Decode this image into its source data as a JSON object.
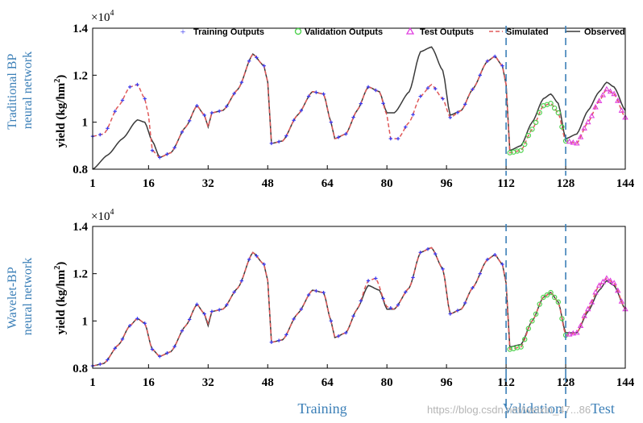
{
  "chart_data": [
    {
      "type": "line",
      "side_label": [
        "Traditional BP",
        "neural network"
      ],
      "ylabel": "yield (kg/hm²)",
      "ylabel_main": "yield (kg/hm",
      "ylabel_sup": "2",
      "ylabel_close": ")",
      "y_multiplier": "×10",
      "y_multiplier_exp": "4",
      "ylim": [
        0.8,
        1.4
      ],
      "yticks": [
        "0.8",
        "1",
        "1.2",
        "1.4"
      ],
      "xlim": [
        1,
        144
      ],
      "xticks": [
        "1",
        "16",
        "32",
        "48",
        "64",
        "80",
        "96",
        "112",
        "128",
        "144"
      ],
      "legend": {
        "position": "top",
        "entries": [
          "Training Outputs",
          "Validation Outputs",
          "Test Outputs",
          "Simulated",
          "Observed"
        ]
      },
      "series": [
        {
          "name": "Observed",
          "color": "#3a3a3a",
          "points": [
            [
              1,
              0.8
            ],
            [
              5,
              0.86
            ],
            [
              9,
              0.93
            ],
            [
              13,
              1.01
            ],
            [
              15,
              1.0
            ],
            [
              17,
              0.92
            ],
            [
              19,
              0.85
            ],
            [
              22,
              0.87
            ],
            [
              26,
              0.98
            ],
            [
              29,
              1.07
            ],
            [
              31,
              1.03
            ],
            [
              32,
              0.98
            ],
            [
              33,
              1.04
            ],
            [
              36,
              1.05
            ],
            [
              40,
              1.14
            ],
            [
              44,
              1.29
            ],
            [
              47,
              1.24
            ],
            [
              48,
              1.17
            ],
            [
              49,
              0.91
            ],
            [
              52,
              0.92
            ],
            [
              56,
              1.03
            ],
            [
              60,
              1.13
            ],
            [
              63,
              1.12
            ],
            [
              65,
              1.0
            ],
            [
              66,
              0.93
            ],
            [
              69,
              0.95
            ],
            [
              72,
              1.05
            ],
            [
              75,
              1.15
            ],
            [
              78,
              1.13
            ],
            [
              80,
              1.04
            ],
            [
              82,
              1.04
            ],
            [
              86,
              1.13
            ],
            [
              89,
              1.3
            ],
            [
              92,
              1.32
            ],
            [
              95,
              1.22
            ],
            [
              97,
              1.03
            ],
            [
              100,
              1.05
            ],
            [
              103,
              1.14
            ],
            [
              107,
              1.26
            ],
            [
              109,
              1.28
            ],
            [
              111,
              1.24
            ],
            [
              112,
              1.16
            ],
            [
              113,
              0.88
            ],
            [
              116,
              0.9
            ],
            [
              119,
              1.0
            ],
            [
              122,
              1.1
            ],
            [
              124,
              1.12
            ],
            [
              126,
              1.08
            ],
            [
              128,
              0.93
            ],
            [
              131,
              0.95
            ],
            [
              134,
              1.05
            ],
            [
              137,
              1.13
            ],
            [
              139,
              1.17
            ],
            [
              141,
              1.15
            ],
            [
              144,
              1.05
            ]
          ]
        },
        {
          "name": "Simulated",
          "color": "#e05a5a",
          "points": [
            [
              1,
              0.94
            ],
            [
              4,
              0.95
            ],
            [
              8,
              1.07
            ],
            [
              11,
              1.15
            ],
            [
              13,
              1.16
            ],
            [
              15,
              1.1
            ],
            [
              16,
              1.03
            ],
            [
              17,
              0.88
            ],
            [
              19,
              0.85
            ],
            [
              22,
              0.87
            ],
            [
              26,
              0.98
            ],
            [
              29,
              1.07
            ],
            [
              31,
              1.03
            ],
            [
              32,
              0.98
            ],
            [
              33,
              1.04
            ],
            [
              36,
              1.05
            ],
            [
              40,
              1.14
            ],
            [
              44,
              1.29
            ],
            [
              47,
              1.24
            ],
            [
              48,
              1.17
            ],
            [
              49,
              0.91
            ],
            [
              52,
              0.92
            ],
            [
              56,
              1.03
            ],
            [
              60,
              1.13
            ],
            [
              63,
              1.12
            ],
            [
              65,
              1.0
            ],
            [
              66,
              0.93
            ],
            [
              69,
              0.95
            ],
            [
              72,
              1.05
            ],
            [
              75,
              1.15
            ],
            [
              78,
              1.13
            ],
            [
              80,
              1.03
            ],
            [
              81,
              0.93
            ],
            [
              83,
              0.93
            ],
            [
              86,
              1.0
            ],
            [
              89,
              1.11
            ],
            [
              92,
              1.16
            ],
            [
              95,
              1.1
            ],
            [
              97,
              1.02
            ],
            [
              100,
              1.05
            ],
            [
              103,
              1.14
            ],
            [
              107,
              1.26
            ],
            [
              109,
              1.28
            ],
            [
              111,
              1.24
            ],
            [
              112,
              1.16
            ],
            [
              113,
              0.87
            ],
            [
              116,
              0.88
            ],
            [
              119,
              0.97
            ],
            [
              122,
              1.07
            ],
            [
              124,
              1.08
            ],
            [
              126,
              1.04
            ],
            [
              128,
              0.92
            ],
            [
              131,
              0.91
            ],
            [
              134,
              1.0
            ],
            [
              137,
              1.09
            ],
            [
              139,
              1.14
            ],
            [
              141,
              1.12
            ],
            [
              144,
              1.02
            ]
          ]
        }
      ]
    },
    {
      "type": "line",
      "side_label": [
        "Wavelet-BP",
        "neural network"
      ],
      "ylabel": "yield (kg/hm²)",
      "ylabel_main": "yield (kg/hm",
      "ylabel_sup": "2",
      "ylabel_close": ")",
      "y_multiplier": "×10",
      "y_multiplier_exp": "4",
      "ylim": [
        0.8,
        1.4
      ],
      "yticks": [
        "0.8",
        "1",
        "1.2",
        "1.4"
      ],
      "xlim": [
        1,
        144
      ],
      "xticks": [
        "1",
        "16",
        "32",
        "48",
        "64",
        "80",
        "96",
        "112",
        "128",
        "144"
      ],
      "series": [
        {
          "name": "Observed",
          "color": "#3a3a3a",
          "points": [
            [
              1,
              0.81
            ],
            [
              4,
              0.82
            ],
            [
              8,
              0.9
            ],
            [
              11,
              0.98
            ],
            [
              13,
              1.01
            ],
            [
              15,
              0.99
            ],
            [
              17,
              0.88
            ],
            [
              19,
              0.85
            ],
            [
              22,
              0.87
            ],
            [
              26,
              0.98
            ],
            [
              29,
              1.07
            ],
            [
              31,
              1.03
            ],
            [
              32,
              0.98
            ],
            [
              33,
              1.04
            ],
            [
              36,
              1.05
            ],
            [
              40,
              1.14
            ],
            [
              44,
              1.29
            ],
            [
              47,
              1.24
            ],
            [
              48,
              1.17
            ],
            [
              49,
              0.91
            ],
            [
              52,
              0.92
            ],
            [
              56,
              1.03
            ],
            [
              60,
              1.13
            ],
            [
              63,
              1.12
            ],
            [
              65,
              1.0
            ],
            [
              66,
              0.93
            ],
            [
              69,
              0.95
            ],
            [
              72,
              1.05
            ],
            [
              75,
              1.15
            ],
            [
              78,
              1.13
            ],
            [
              80,
              1.05
            ],
            [
              82,
              1.05
            ],
            [
              86,
              1.14
            ],
            [
              89,
              1.29
            ],
            [
              92,
              1.31
            ],
            [
              95,
              1.22
            ],
            [
              97,
              1.03
            ],
            [
              100,
              1.05
            ],
            [
              103,
              1.14
            ],
            [
              107,
              1.26
            ],
            [
              109,
              1.28
            ],
            [
              111,
              1.24
            ],
            [
              112,
              1.16
            ],
            [
              113,
              0.89
            ],
            [
              116,
              0.9
            ],
            [
              119,
              1.0
            ],
            [
              122,
              1.1
            ],
            [
              124,
              1.12
            ],
            [
              126,
              1.08
            ],
            [
              128,
              0.95
            ],
            [
              131,
              0.95
            ],
            [
              134,
              1.04
            ],
            [
              137,
              1.13
            ],
            [
              139,
              1.17
            ],
            [
              141,
              1.15
            ],
            [
              144,
              1.05
            ]
          ]
        },
        {
          "name": "Simulated",
          "color": "#e05a5a",
          "points": [
            [
              1,
              0.81
            ],
            [
              4,
              0.82
            ],
            [
              8,
              0.9
            ],
            [
              11,
              0.98
            ],
            [
              13,
              1.01
            ],
            [
              15,
              0.99
            ],
            [
              17,
              0.88
            ],
            [
              19,
              0.85
            ],
            [
              22,
              0.87
            ],
            [
              26,
              0.98
            ],
            [
              29,
              1.07
            ],
            [
              31,
              1.03
            ],
            [
              32,
              0.99
            ],
            [
              33,
              1.04
            ],
            [
              36,
              1.05
            ],
            [
              40,
              1.14
            ],
            [
              44,
              1.29
            ],
            [
              47,
              1.24
            ],
            [
              48,
              1.17
            ],
            [
              49,
              0.91
            ],
            [
              52,
              0.92
            ],
            [
              56,
              1.03
            ],
            [
              60,
              1.13
            ],
            [
              63,
              1.12
            ],
            [
              65,
              1.0
            ],
            [
              66,
              0.93
            ],
            [
              69,
              0.95
            ],
            [
              72,
              1.05
            ],
            [
              75,
              1.17
            ],
            [
              77,
              1.18
            ],
            [
              80,
              1.06
            ],
            [
              82,
              1.05
            ],
            [
              86,
              1.14
            ],
            [
              89,
              1.29
            ],
            [
              92,
              1.31
            ],
            [
              95,
              1.22
            ],
            [
              97,
              1.03
            ],
            [
              100,
              1.05
            ],
            [
              103,
              1.14
            ],
            [
              107,
              1.26
            ],
            [
              109,
              1.28
            ],
            [
              111,
              1.24
            ],
            [
              112,
              1.16
            ],
            [
              113,
              0.88
            ],
            [
              116,
              0.89
            ],
            [
              119,
              1.0
            ],
            [
              122,
              1.1
            ],
            [
              124,
              1.12
            ],
            [
              126,
              1.08
            ],
            [
              128,
              0.94
            ],
            [
              131,
              0.95
            ],
            [
              134,
              1.05
            ],
            [
              137,
              1.15
            ],
            [
              139,
              1.18
            ],
            [
              141,
              1.16
            ],
            [
              144,
              1.05
            ]
          ]
        }
      ]
    }
  ],
  "split_markers": [
    112,
    128
  ],
  "region_labels": {
    "training": "Training",
    "validation": "Validation",
    "test": "Test"
  },
  "watermark": "https://blog.csdn.net/weixin_47...86",
  "colors": {
    "training": "#3a3af0",
    "validation": "#4fd24f",
    "test": "#e040e0",
    "simulated": "#e05a5a",
    "observed": "#3a3a3a",
    "divider": "#3b7fb7"
  }
}
